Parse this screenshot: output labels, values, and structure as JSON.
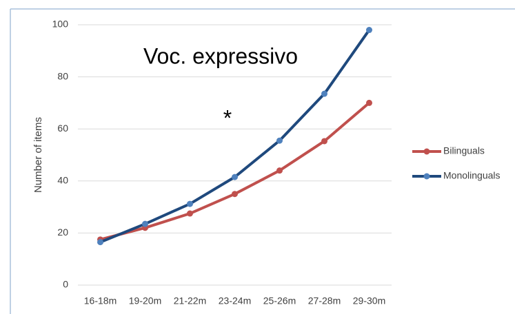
{
  "chart_data": {
    "type": "line",
    "title": "Voc. expressivo",
    "annotations": [
      "*"
    ],
    "y_label": "Number of items",
    "categories": [
      "16-18m",
      "19-20m",
      "21-22m",
      "23-24m",
      "25-26m",
      "27-28m",
      "29-30m"
    ],
    "series": [
      {
        "name": "Bilinguals",
        "color": "#c0504d",
        "values": [
          17.5,
          22,
          27.5,
          35,
          44,
          55.3,
          70
        ]
      },
      {
        "name": "Monolinguals",
        "color": "#1f497d",
        "values": [
          16.5,
          23.5,
          31.2,
          41.5,
          55.5,
          73.5,
          98
        ]
      }
    ],
    "ylim": [
      0,
      100
    ],
    "yticks": [
      0,
      20,
      40,
      60,
      80,
      100
    ],
    "grid": true,
    "legend": "right"
  }
}
